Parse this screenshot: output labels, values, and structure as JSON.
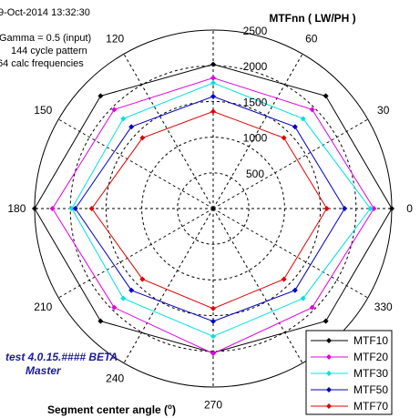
{
  "header": {
    "timestamp": "9-Oct-2014 13:32:30",
    "gamma": "Gamma = 0.5 (input)",
    "pattern": "144 cycle pattern",
    "calc_freq": "64 calc frequencies"
  },
  "version": {
    "line1": "test 4.0.15.#### BETA",
    "line2": "Master"
  },
  "xlabel_text": "Segment center angle (",
  "xlabel_degree": "o",
  "xlabel_close": ")",
  "colors": {
    "background": "#ffffff",
    "grid": "#000000",
    "version_text": "#1a1aa0"
  },
  "chart_data": {
    "type": "line",
    "subtype": "polar",
    "title": "MTFnn  ( LW/PH )",
    "xlabel": "Segment center angle (o)",
    "rlim": [
      0,
      2500
    ],
    "radial_ticks": [
      500,
      1000,
      1500,
      2000,
      2500
    ],
    "angular_ticks": [
      0,
      30,
      60,
      90,
      120,
      150,
      180,
      210,
      240,
      270,
      300,
      330
    ],
    "angular_tick_labels": [
      "0",
      "30",
      "60",
      "",
      "120",
      "150",
      "180",
      "210",
      "240",
      "270",
      "",
      "330"
    ],
    "x": [
      0,
      45,
      90,
      135,
      180,
      225,
      270,
      315
    ],
    "legend_position": "bottom-right",
    "grid": true,
    "series": [
      {
        "name": "MTF10",
        "color": "#000000",
        "values": [
          2500,
          2230,
          2020,
          2230,
          2500,
          2230,
          2020,
          2230
        ]
      },
      {
        "name": "MTF20",
        "color": "#e000e0",
        "values": [
          2250,
          1960,
          1830,
          1960,
          2250,
          1960,
          2030,
          1960
        ]
      },
      {
        "name": "MTF30",
        "color": "#00e0e0",
        "values": [
          2200,
          1780,
          1760,
          1780,
          1980,
          1780,
          1790,
          1780
        ]
      },
      {
        "name": "MTF50",
        "color": "#0000c0",
        "values": [
          1840,
          1620,
          1570,
          1620,
          1930,
          1620,
          1580,
          1620
        ]
      },
      {
        "name": "MTF70",
        "color": "#e00000",
        "values": [
          1590,
          1400,
          1360,
          1400,
          1700,
          1400,
          1400,
          1400
        ]
      }
    ]
  }
}
